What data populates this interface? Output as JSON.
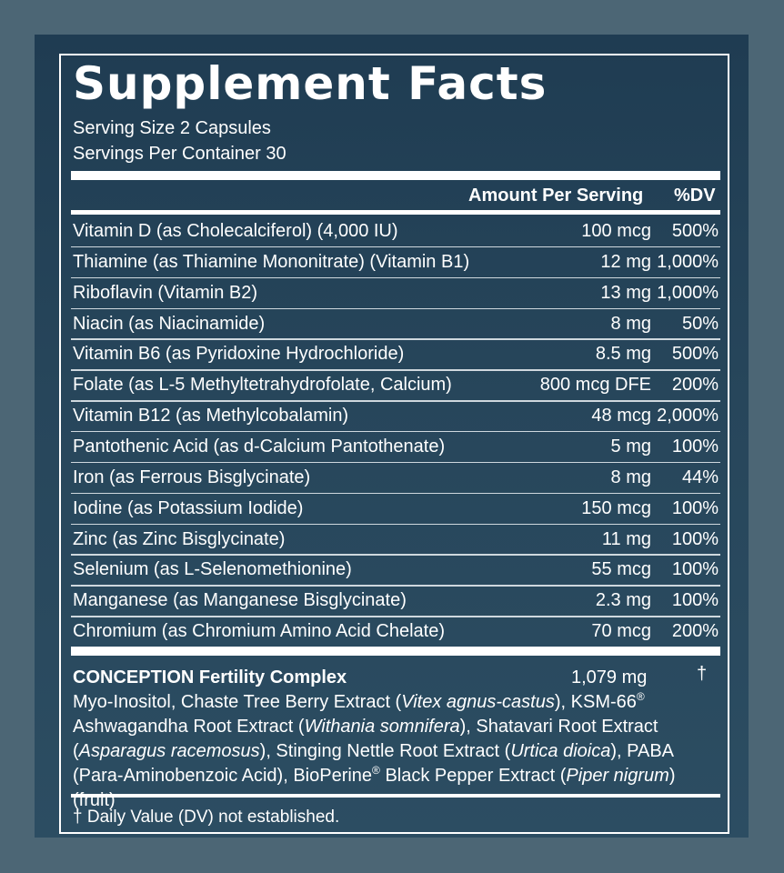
{
  "title": "Supplement Facts",
  "serving_size": "Serving Size 2 Capsules",
  "servings_per_container": "Servings Per Container 30",
  "columns": {
    "amount": "Amount Per Serving",
    "dv": "%DV"
  },
  "nutrients": [
    {
      "name": "Vitamin D (as Cholecalciferol) (4,000 IU)",
      "amount": "100 mcg",
      "dv": "500%"
    },
    {
      "name": "Thiamine (as Thiamine Mononitrate) (Vitamin B1)",
      "amount": "12 mg",
      "dv": "1,000%"
    },
    {
      "name": "Riboflavin (Vitamin B2)",
      "amount": "13 mg",
      "dv": "1,000%"
    },
    {
      "name": "Niacin (as Niacinamide)",
      "amount": "8 mg",
      "dv": "50%"
    },
    {
      "name": "Vitamin B6 (as Pyridoxine Hydrochloride)",
      "amount": "8.5 mg",
      "dv": "500%"
    },
    {
      "name": "Folate (as L-5 Methyltetrahydrofolate, Calcium)",
      "amount": "800 mcg DFE",
      "dv": "200%"
    },
    {
      "name": "Vitamin B12 (as Methylcobalamin)",
      "amount": "48 mcg",
      "dv": "2,000%"
    },
    {
      "name": "Pantothenic Acid (as d-Calcium Pantothenate)",
      "amount": "5 mg",
      "dv": "100%"
    },
    {
      "name": "Iron (as Ferrous Bisglycinate)",
      "amount": "8 mg",
      "dv": "44%"
    },
    {
      "name": "Iodine (as Potassium Iodide)",
      "amount": "150 mcg",
      "dv": "100%"
    },
    {
      "name": "Zinc (as Zinc Bisglycinate)",
      "amount": "11 mg",
      "dv": "100%"
    },
    {
      "name": "Selenium (as L-Selenomethionine)",
      "amount": "55 mcg",
      "dv": "100%"
    },
    {
      "name": "Manganese (as Manganese Bisglycinate)",
      "amount": "2.3 mg",
      "dv": "100%"
    },
    {
      "name": "Chromium (as Chromium Amino Acid Chelate)",
      "amount": "70 mcg",
      "dv": "200%"
    }
  ],
  "complex": {
    "name": "CONCEPTION Fertility Complex",
    "amount": "1,079 mg",
    "dv": "†",
    "ingredients": {
      "t1": "Myo-Inositol, Chaste Tree Berry Extract (",
      "i1": "Vitex agnus-castus",
      "t2": "), KSM-66",
      "sup1": "®",
      "t3": " Ashwagandha Root Extract (",
      "i2": "Withania somnifera",
      "t4": "), Shatavari Root Extract (",
      "i3": "Asparagus racemosus",
      "t5": "), Stinging Nettle Root Extract (",
      "i4": "Urtica dioica",
      "t6": "), PABA (Para-Aminobenzoic Acid), BioPerine",
      "sup2": "®",
      "t7": " Black Pepper Extract (",
      "i5": "Piper nigrum",
      "t8": ") (fruit)"
    }
  },
  "footnote": "† Daily Value (DV) not established.",
  "colors": {
    "panel": "#27465b",
    "background": "#4c6675",
    "text": "#ffffff"
  }
}
